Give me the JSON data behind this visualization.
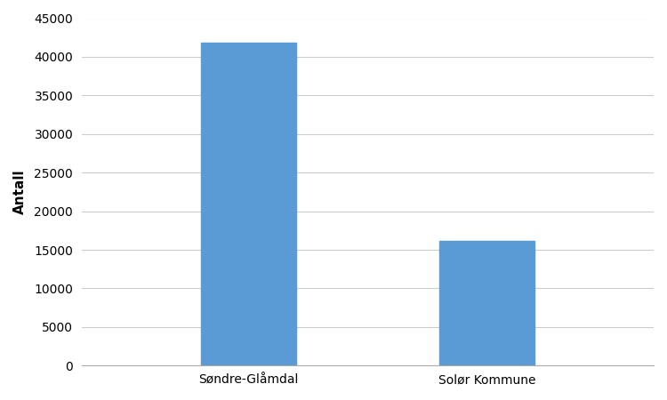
{
  "categories": [
    "Søndre-Glåmdal",
    "Solør Kommune"
  ],
  "values": [
    41800,
    16100
  ],
  "bar_color": "#5B9BD5",
  "ylabel": "Antall",
  "ylim": [
    0,
    45000
  ],
  "yticks": [
    0,
    5000,
    10000,
    15000,
    20000,
    25000,
    30000,
    35000,
    40000,
    45000
  ],
  "bar_width": 0.4,
  "background_color": "#ffffff",
  "grid_color": "#cccccc",
  "ylabel_fontsize": 11,
  "tick_fontsize": 10,
  "label_fontsize": 10,
  "xlim": [
    -0.7,
    1.7
  ]
}
